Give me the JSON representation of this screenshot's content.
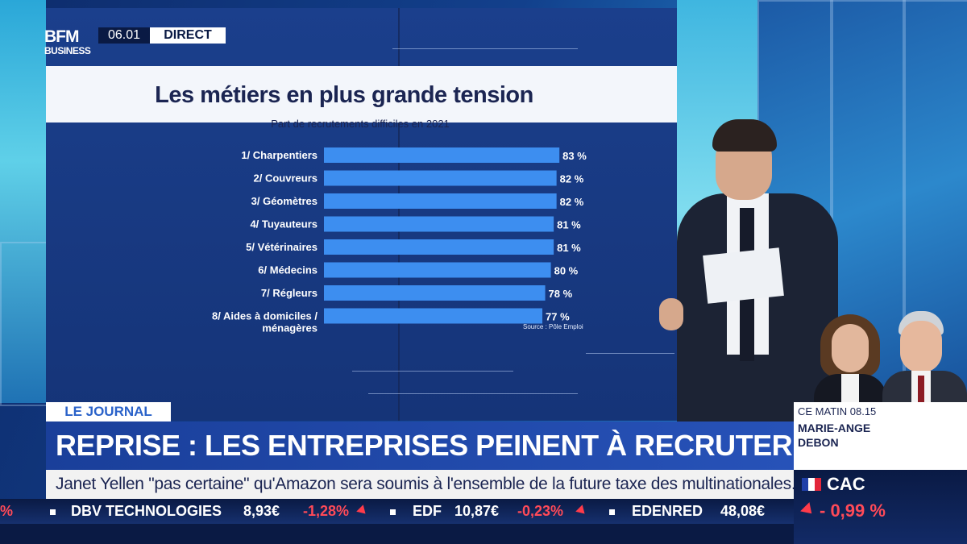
{
  "channel": {
    "logo_line1": "BFM",
    "logo_line2": "BUSINESS",
    "clock": "06.01",
    "live_label": "DIRECT"
  },
  "chart_data": {
    "type": "bar",
    "orientation": "horizontal",
    "title": "Les métiers en plus grande tension",
    "subtitle": "Part de recrutements difficiles en 2021",
    "categories": [
      "1/ Charpentiers",
      "2/ Couvreurs",
      "3/ Géomètres",
      "4/ Tuyauteurs",
      "5/ Vétérinaires",
      "6/ Médecins",
      "7/ Régleurs",
      "8/ Aides à domiciles / ménagères"
    ],
    "values": [
      83,
      82,
      82,
      81,
      81,
      80,
      78,
      77
    ],
    "value_labels": [
      "83 %",
      "82 %",
      "82 %",
      "81 %",
      "81 %",
      "80 %",
      "78 %",
      "77 %"
    ],
    "unit": "%",
    "source": "Source : Pôle Emploi",
    "bar_color": "#3d8ef0",
    "xlim": [
      0,
      100
    ]
  },
  "lower_third": {
    "section_label": "LE JOURNAL",
    "headline": "REPRISE : LES ENTREPRISES PEINENT À RECRUTER",
    "ticker_text": "Janet Yellen \"pas certaine\" qu'Amazon sera soumis à l'ensemble de la future taxe des multinationales."
  },
  "show": {
    "time_label": "CE MATIN 08.15",
    "guest_first_name": "MARIE-ANGE",
    "guest_last_name": "DEBON"
  },
  "market_index": {
    "name": "CAC",
    "change": "- 0,99 %",
    "change_color": "#ff4a58"
  },
  "stock_ticker": [
    {
      "text": "%"
    },
    {
      "text": "DBV TECHNOLOGIES"
    },
    {
      "text": "8,93€"
    },
    {
      "text": "-1,28%"
    },
    {
      "text": "EDF"
    },
    {
      "text": "10,87€"
    },
    {
      "text": "-0,23%"
    },
    {
      "text": "EDENRED"
    },
    {
      "text": "48,08€"
    }
  ]
}
